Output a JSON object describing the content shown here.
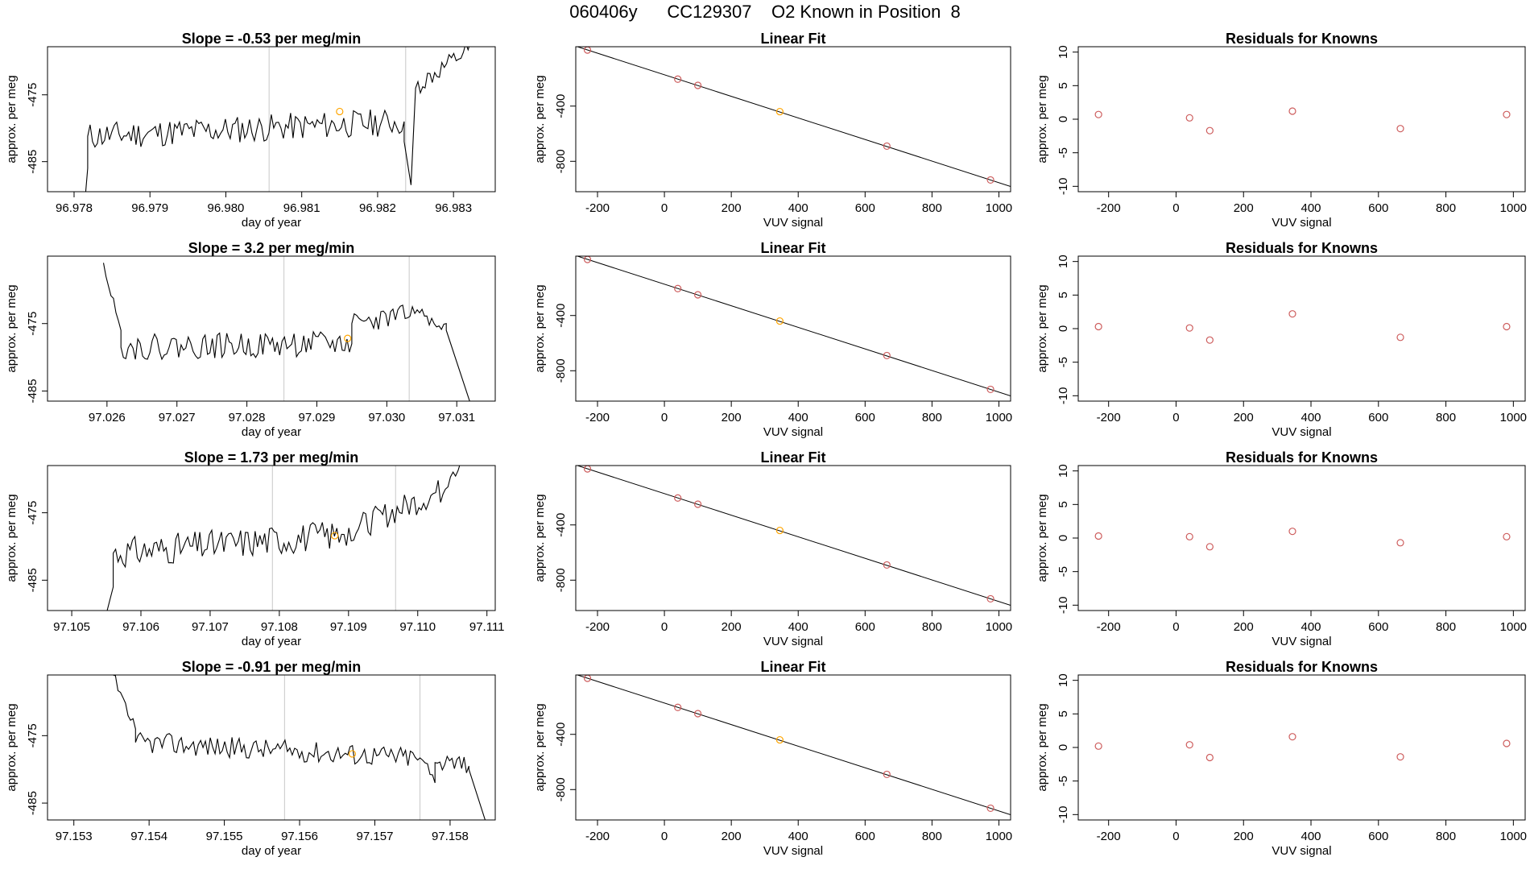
{
  "figure": {
    "suptitle": "060406y      CC129307    O2 Known in Position  8"
  },
  "colors": {
    "trace": "#000000",
    "known_point": "#cd5c5c",
    "highlight_point": "#ffa500",
    "vline": "#c8c8c8",
    "axis": "#000000"
  },
  "chart_data": [
    {
      "type": "line",
      "row": 0,
      "col": 0,
      "title": "Slope =  -0.53  per meg/min",
      "xlabel": "day of year",
      "ylabel": "approx. per meg",
      "xlim": [
        96.97765,
        96.98355
      ],
      "ylim": [
        -489.5,
        -467.8
      ],
      "xticks": [
        96.978,
        96.979,
        96.98,
        96.981,
        96.982,
        96.983
      ],
      "xticklabels": [
        "96.978",
        "96.979",
        "96.980",
        "96.981",
        "96.982",
        "96.983"
      ],
      "yticks": [
        -475,
        -485
      ],
      "yticklabels": [
        "-475",
        "-485"
      ],
      "vlines": [
        96.98057,
        96.98237
      ],
      "highlight": {
        "x": 96.9815,
        "y": -477.5
      },
      "segments": [
        {
          "x_start": 96.97815,
          "x_end": 96.97818,
          "start": -490,
          "end": -486
        },
        {
          "x_start": 96.97818,
          "x_end": 96.98235,
          "start": -481.2,
          "end": -479.0,
          "noise": 2.1,
          "seed": 11
        },
        {
          "x_start": 96.98235,
          "x_end": 96.98244,
          "start": -482,
          "end": -488.5
        },
        {
          "x_start": 96.98244,
          "x_end": 96.9825,
          "start": -488.5,
          "end": -474
        },
        {
          "x_start": 96.9825,
          "x_end": 96.98335,
          "start": -474,
          "end": -467.2,
          "noise": 1.5,
          "seed": 12
        }
      ]
    },
    {
      "type": "scatter",
      "row": 0,
      "col": 1,
      "title": "Linear Fit",
      "xlabel": "VUV signal",
      "ylabel": "approx. per meg",
      "xlim": [
        -265,
        1035
      ],
      "ylim": [
        -1020,
        30
      ],
      "xticks": [
        -200,
        0,
        200,
        400,
        600,
        800,
        1000
      ],
      "xticklabels": [
        "-200",
        "0",
        "200",
        "400",
        "600",
        "800",
        "1000"
      ],
      "yticks": [
        -400,
        -800
      ],
      "yticklabels": [
        "-400",
        "-800"
      ],
      "fit_line": {
        "x": [
          -265,
          1035
        ],
        "y": [
          34,
          -982
        ]
      },
      "points": [
        {
          "x": -230,
          "y": 6
        },
        {
          "x": 40,
          "y": -205
        },
        {
          "x": 100,
          "y": -250
        },
        {
          "x": 345,
          "y": -440,
          "highlight": true
        },
        {
          "x": 665,
          "y": -690
        },
        {
          "x": 975,
          "y": -935
        }
      ]
    },
    {
      "type": "scatter",
      "row": 0,
      "col": 2,
      "title": "Residuals for Knowns",
      "xlabel": "VUV signal",
      "ylabel": "approx. per meg",
      "xlim": [
        -290,
        1035
      ],
      "ylim": [
        -10.8,
        10.8
      ],
      "xticks": [
        -200,
        0,
        200,
        400,
        600,
        800,
        1000
      ],
      "xticklabels": [
        "-200",
        "0",
        "200",
        "400",
        "600",
        "800",
        "1000"
      ],
      "yticks": [
        10,
        5,
        0,
        -5,
        -10
      ],
      "yticklabels": [
        "10",
        "5",
        "0",
        "-5",
        "-10"
      ],
      "points": [
        {
          "x": -230,
          "y": 0.7
        },
        {
          "x": 40,
          "y": 0.2
        },
        {
          "x": 100,
          "y": -1.7
        },
        {
          "x": 345,
          "y": 1.2
        },
        {
          "x": 665,
          "y": -1.4
        },
        {
          "x": 980,
          "y": 0.7
        }
      ]
    },
    {
      "type": "line",
      "row": 1,
      "col": 0,
      "title": "Slope =  3.2  per meg/min",
      "xlabel": "day of year",
      "ylabel": "approx. per meg",
      "xlim": [
        97.02515,
        97.03155
      ],
      "ylim": [
        -486.5,
        -465.0
      ],
      "xticks": [
        97.026,
        97.027,
        97.028,
        97.029,
        97.03,
        97.031
      ],
      "xticklabels": [
        "97.026",
        "97.027",
        "97.028",
        "97.029",
        "97.030",
        "97.031"
      ],
      "yticks": [
        -475,
        -485
      ],
      "yticklabels": [
        "-475",
        "-485"
      ],
      "vlines": [
        97.02853,
        97.03032
      ],
      "highlight": {
        "x": 97.02944,
        "y": -477.2
      },
      "segments": [
        {
          "x_start": 97.02595,
          "x_end": 97.0262,
          "start": -466,
          "end": -476,
          "noise": 1.2,
          "seed": 21
        },
        {
          "x_start": 97.0262,
          "x_end": 97.0295,
          "start": -478.5,
          "end": -478.0,
          "noise": 1.9,
          "seed": 22
        },
        {
          "x_start": 97.0295,
          "x_end": 97.0304,
          "start": -475.0,
          "end": -473.5,
          "noise": 1.6,
          "seed": 23
        },
        {
          "x_start": 97.0304,
          "x_end": 97.03085,
          "start": -473.5,
          "end": -475,
          "noise": 1.2,
          "seed": 24
        },
        {
          "x_start": 97.03085,
          "x_end": 97.0312,
          "start": -476,
          "end": -487
        }
      ]
    },
    {
      "type": "scatter",
      "row": 1,
      "col": 1,
      "title": "Linear Fit",
      "xlabel": "VUV signal",
      "ylabel": "approx. per meg",
      "xlim": [
        -265,
        1035
      ],
      "ylim": [
        -1020,
        30
      ],
      "xticks": [
        -200,
        0,
        200,
        400,
        600,
        800,
        1000
      ],
      "xticklabels": [
        "-200",
        "0",
        "200",
        "400",
        "600",
        "800",
        "1000"
      ],
      "yticks": [
        -400,
        -800
      ],
      "yticklabels": [
        "-400",
        "-800"
      ],
      "fit_line": {
        "x": [
          -265,
          1035
        ],
        "y": [
          34,
          -982
        ]
      },
      "points": [
        {
          "x": -230,
          "y": 6
        },
        {
          "x": 40,
          "y": -205
        },
        {
          "x": 100,
          "y": -250
        },
        {
          "x": 345,
          "y": -440,
          "highlight": true
        },
        {
          "x": 665,
          "y": -690
        },
        {
          "x": 975,
          "y": -935
        }
      ]
    },
    {
      "type": "scatter",
      "row": 1,
      "col": 2,
      "title": "Residuals for Knowns",
      "xlabel": "VUV signal",
      "ylabel": "approx. per meg",
      "xlim": [
        -290,
        1035
      ],
      "ylim": [
        -10.8,
        10.8
      ],
      "xticks": [
        -200,
        0,
        200,
        400,
        600,
        800,
        1000
      ],
      "xticklabels": [
        "-200",
        "0",
        "200",
        "400",
        "600",
        "800",
        "1000"
      ],
      "yticks": [
        10,
        5,
        0,
        -5,
        -10
      ],
      "yticklabels": [
        "10",
        "5",
        "0",
        "-5",
        "-10"
      ],
      "points": [
        {
          "x": -230,
          "y": 0.3
        },
        {
          "x": 40,
          "y": 0.1
        },
        {
          "x": 100,
          "y": -1.7
        },
        {
          "x": 345,
          "y": 2.2
        },
        {
          "x": 665,
          "y": -1.3
        },
        {
          "x": 980,
          "y": 0.3
        }
      ]
    },
    {
      "type": "line",
      "row": 2,
      "col": 0,
      "title": "Slope =  1.73  per meg/min",
      "xlabel": "day of year",
      "ylabel": "approx. per meg",
      "xlim": [
        97.10465,
        97.11112
      ],
      "ylim": [
        -489.5,
        -468.0
      ],
      "xticks": [
        97.105,
        97.106,
        97.107,
        97.108,
        97.109,
        97.11,
        97.111
      ],
      "xticklabels": [
        "97.105",
        "97.106",
        "97.107",
        "97.108",
        "97.109",
        "97.110",
        "97.111"
      ],
      "yticks": [
        -475,
        -485
      ],
      "yticklabels": [
        "-475",
        "-485"
      ],
      "vlines": [
        97.1079,
        97.10968
      ],
      "highlight": {
        "x": 97.1088,
        "y": -478.4
      },
      "segments": [
        {
          "x_start": 97.1055,
          "x_end": 97.1056,
          "start": -490,
          "end": -486
        },
        {
          "x_start": 97.1056,
          "x_end": 97.1089,
          "start": -481.0,
          "end": -478.2,
          "noise": 2.3,
          "seed": 31
        },
        {
          "x_start": 97.1089,
          "x_end": 97.1104,
          "start": -478.2,
          "end": -471.5,
          "noise": 2.0,
          "seed": 32
        },
        {
          "x_start": 97.1104,
          "x_end": 97.11062,
          "start": -471.5,
          "end": -467.5,
          "noise": 0.8,
          "seed": 33
        }
      ]
    },
    {
      "type": "scatter",
      "row": 2,
      "col": 1,
      "title": "Linear Fit",
      "xlabel": "VUV signal",
      "ylabel": "approx. per meg",
      "xlim": [
        -265,
        1035
      ],
      "ylim": [
        -1020,
        30
      ],
      "xticks": [
        -200,
        0,
        200,
        400,
        600,
        800,
        1000
      ],
      "xticklabels": [
        "-200",
        "0",
        "200",
        "400",
        "600",
        "800",
        "1000"
      ],
      "yticks": [
        -400,
        -800
      ],
      "yticklabels": [
        "-400",
        "-800"
      ],
      "fit_line": {
        "x": [
          -265,
          1035
        ],
        "y": [
          34,
          -982
        ]
      },
      "points": [
        {
          "x": -230,
          "y": 6
        },
        {
          "x": 40,
          "y": -205
        },
        {
          "x": 100,
          "y": -250
        },
        {
          "x": 345,
          "y": -440,
          "highlight": true
        },
        {
          "x": 665,
          "y": -690
        },
        {
          "x": 975,
          "y": -935
        }
      ]
    },
    {
      "type": "scatter",
      "row": 2,
      "col": 2,
      "title": "Residuals for Knowns",
      "xlabel": "VUV signal",
      "ylabel": "approx. per meg",
      "xlim": [
        -290,
        1035
      ],
      "ylim": [
        -10.8,
        10.8
      ],
      "xticks": [
        -200,
        0,
        200,
        400,
        600,
        800,
        1000
      ],
      "xticklabels": [
        "-200",
        "0",
        "200",
        "400",
        "600",
        "800",
        "1000"
      ],
      "yticks": [
        10,
        5,
        0,
        -5,
        -10
      ],
      "yticklabels": [
        "10",
        "5",
        "0",
        "-5",
        "-10"
      ],
      "points": [
        {
          "x": -230,
          "y": 0.3
        },
        {
          "x": 40,
          "y": 0.2
        },
        {
          "x": 100,
          "y": -1.3
        },
        {
          "x": 345,
          "y": 1.0
        },
        {
          "x": 665,
          "y": -0.7
        },
        {
          "x": 980,
          "y": 0.2
        }
      ]
    },
    {
      "type": "line",
      "row": 3,
      "col": 0,
      "title": "Slope =  -0.91  per meg/min",
      "xlabel": "day of year",
      "ylabel": "approx. per meg",
      "xlim": [
        97.15265,
        97.1586
      ],
      "ylim": [
        -487.5,
        -466.0
      ],
      "xticks": [
        97.153,
        97.154,
        97.155,
        97.156,
        97.157,
        97.158
      ],
      "xticklabels": [
        "97.153",
        "97.154",
        "97.155",
        "97.156",
        "97.157",
        "97.158"
      ],
      "yticks": [
        -475,
        -485
      ],
      "yticklabels": [
        "-475",
        "-485"
      ],
      "vlines": [
        97.1558,
        97.1576
      ],
      "highlight": {
        "x": 97.1567,
        "y": -477.7
      },
      "segments": [
        {
          "x_start": 97.15352,
          "x_end": 97.15382,
          "start": -466,
          "end": -474,
          "noise": 0.8,
          "seed": 41
        },
        {
          "x_start": 97.15382,
          "x_end": 97.1576,
          "start": -476.0,
          "end": -478.3,
          "noise": 1.6,
          "seed": 42
        },
        {
          "x_start": 97.1576,
          "x_end": 97.1578,
          "start": -478.3,
          "end": -482,
          "noise": 1.0,
          "seed": 43
        },
        {
          "x_start": 97.1578,
          "x_end": 97.15825,
          "start": -479,
          "end": -479.5,
          "noise": 1.6,
          "seed": 44
        },
        {
          "x_start": 97.15825,
          "x_end": 97.15848,
          "start": -480,
          "end": -488
        }
      ]
    },
    {
      "type": "scatter",
      "row": 3,
      "col": 1,
      "title": "Linear Fit",
      "xlabel": "VUV signal",
      "ylabel": "approx. per meg",
      "xlim": [
        -265,
        1035
      ],
      "ylim": [
        -1020,
        30
      ],
      "xticks": [
        -200,
        0,
        200,
        400,
        600,
        800,
        1000
      ],
      "xticklabels": [
        "-200",
        "0",
        "200",
        "400",
        "600",
        "800",
        "1000"
      ],
      "yticks": [
        -400,
        -800
      ],
      "yticklabels": [
        "-400",
        "-800"
      ],
      "fit_line": {
        "x": [
          -265,
          1035
        ],
        "y": [
          34,
          -982
        ]
      },
      "points": [
        {
          "x": -230,
          "y": 6
        },
        {
          "x": 40,
          "y": -205
        },
        {
          "x": 100,
          "y": -250
        },
        {
          "x": 345,
          "y": -440,
          "highlight": true
        },
        {
          "x": 665,
          "y": -690
        },
        {
          "x": 975,
          "y": -935
        }
      ]
    },
    {
      "type": "scatter",
      "row": 3,
      "col": 2,
      "title": "Residuals for Knowns",
      "xlabel": "VUV signal",
      "ylabel": "approx. per meg",
      "xlim": [
        -290,
        1035
      ],
      "ylim": [
        -10.8,
        10.8
      ],
      "xticks": [
        -200,
        0,
        200,
        400,
        600,
        800,
        1000
      ],
      "xticklabels": [
        "-200",
        "0",
        "200",
        "400",
        "600",
        "800",
        "1000"
      ],
      "yticks": [
        10,
        5,
        0,
        -5,
        -10
      ],
      "yticklabels": [
        "10",
        "5",
        "0",
        "-5",
        "-10"
      ],
      "points": [
        {
          "x": -230,
          "y": 0.2
        },
        {
          "x": 40,
          "y": 0.4
        },
        {
          "x": 100,
          "y": -1.5
        },
        {
          "x": 345,
          "y": 1.6
        },
        {
          "x": 665,
          "y": -1.4
        },
        {
          "x": 980,
          "y": 0.6
        }
      ]
    }
  ]
}
